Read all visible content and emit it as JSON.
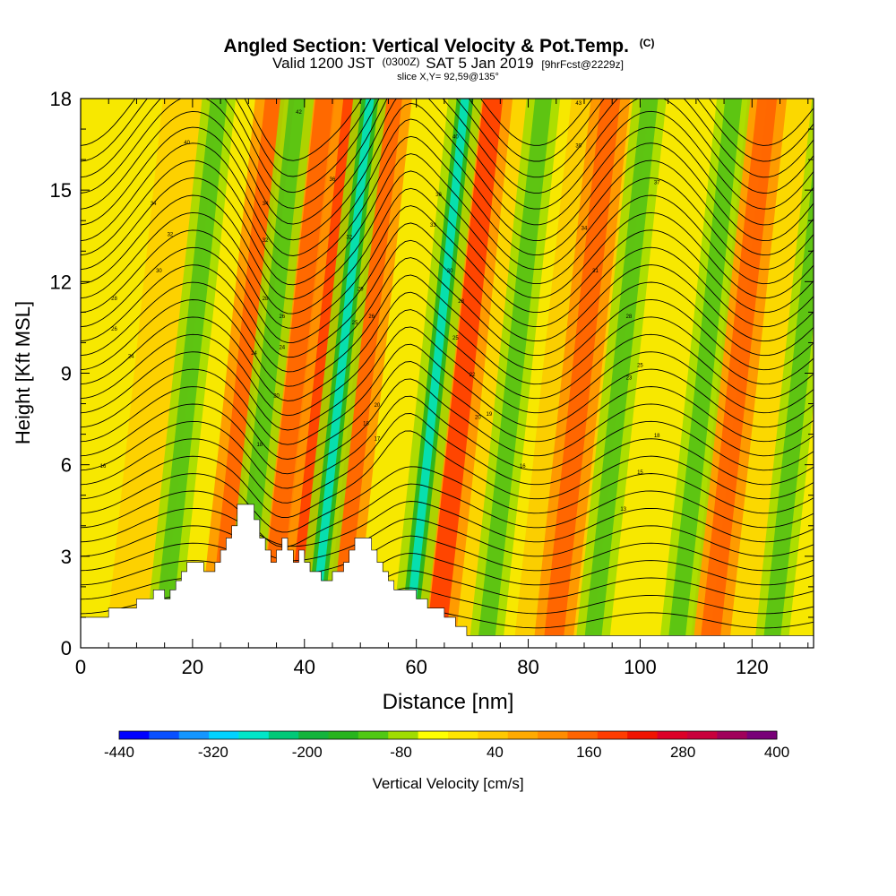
{
  "title": {
    "main": "Angled Section: Vertical Velocity & Pot.Temp.",
    "main_unit": "(C)",
    "valid_prefix": "Valid 1200 JST",
    "valid_utc": "(0300Z)",
    "valid_date": "SAT 5 Jan 2019",
    "forecast": "[9hrFcst@2229z]",
    "slice": "slice X,Y= 92,59@135°"
  },
  "chart_data": {
    "type": "heatmap",
    "xlabel": "Distance [nm]",
    "ylabel": "Height [Kft MSL]",
    "xlim": [
      0,
      131
    ],
    "ylim": [
      0,
      18
    ],
    "x_ticks": [
      0,
      20,
      40,
      60,
      80,
      100,
      120
    ],
    "y_ticks": [
      0,
      3,
      6,
      9,
      12,
      15,
      18
    ],
    "colorbar": {
      "label": "Vertical Velocity [cm/s]",
      "min": -440,
      "max": 400,
      "step": 40,
      "tick_labels": [
        -440,
        -320,
        -200,
        -80,
        40,
        160,
        280,
        400
      ],
      "colors": [
        "#0000ff",
        "#0a50ff",
        "#1496ff",
        "#00d2ff",
        "#00e6c8",
        "#00c878",
        "#14b43c",
        "#28b41e",
        "#50c814",
        "#a0dc00",
        "#ffff00",
        "#ffe600",
        "#ffc800",
        "#ffaa00",
        "#ff8c00",
        "#ff6400",
        "#ff3c00",
        "#f01400",
        "#dc0028",
        "#c8003c",
        "#a0005a",
        "#780078"
      ]
    },
    "terrain_height_kft": [
      [
        0,
        1.0
      ],
      [
        5,
        1.0
      ],
      [
        5,
        1.3
      ],
      [
        10,
        1.3
      ],
      [
        10,
        1.6
      ],
      [
        13,
        1.6
      ],
      [
        13,
        1.9
      ],
      [
        15,
        1.9
      ],
      [
        15,
        1.6
      ],
      [
        16,
        1.6
      ],
      [
        16,
        1.9
      ],
      [
        17,
        1.9
      ],
      [
        17,
        2.2
      ],
      [
        18,
        2.2
      ],
      [
        18,
        2.5
      ],
      [
        19,
        2.5
      ],
      [
        19,
        2.8
      ],
      [
        22,
        2.8
      ],
      [
        22,
        2.5
      ],
      [
        24,
        2.5
      ],
      [
        24,
        2.8
      ],
      [
        25,
        2.8
      ],
      [
        25,
        3.2
      ],
      [
        26,
        3.2
      ],
      [
        26,
        3.6
      ],
      [
        27,
        3.6
      ],
      [
        27,
        4.0
      ],
      [
        28,
        4.0
      ],
      [
        28,
        4.7
      ],
      [
        31,
        4.7
      ],
      [
        31,
        4.2
      ],
      [
        32,
        4.2
      ],
      [
        32,
        3.6
      ],
      [
        33,
        3.6
      ],
      [
        33,
        3.2
      ],
      [
        34,
        3.2
      ],
      [
        34,
        2.8
      ],
      [
        35,
        2.8
      ],
      [
        35,
        3.2
      ],
      [
        36,
        3.2
      ],
      [
        36,
        3.6
      ],
      [
        37,
        3.6
      ],
      [
        37,
        3.2
      ],
      [
        38,
        3.2
      ],
      [
        38,
        2.8
      ],
      [
        39,
        2.8
      ],
      [
        39,
        3.2
      ],
      [
        40,
        3.2
      ],
      [
        40,
        2.8
      ],
      [
        41,
        2.8
      ],
      [
        41,
        2.5
      ],
      [
        43,
        2.5
      ],
      [
        43,
        2.2
      ],
      [
        45,
        2.2
      ],
      [
        45,
        2.5
      ],
      [
        47,
        2.5
      ],
      [
        47,
        2.8
      ],
      [
        48,
        2.8
      ],
      [
        48,
        3.2
      ],
      [
        49,
        3.2
      ],
      [
        49,
        3.6
      ],
      [
        52,
        3.6
      ],
      [
        52,
        3.2
      ],
      [
        53,
        3.2
      ],
      [
        53,
        2.8
      ],
      [
        54,
        2.8
      ],
      [
        54,
        2.5
      ],
      [
        55,
        2.5
      ],
      [
        55,
        2.2
      ],
      [
        56,
        2.2
      ],
      [
        56,
        1.9
      ],
      [
        60,
        1.9
      ],
      [
        60,
        1.6
      ],
      [
        62,
        1.6
      ],
      [
        62,
        1.3
      ],
      [
        65,
        1.3
      ],
      [
        65,
        1.0
      ],
      [
        67,
        1.0
      ],
      [
        67,
        0.7
      ],
      [
        69,
        0.7
      ],
      [
        69,
        0.4
      ],
      [
        131,
        0.4
      ]
    ],
    "updraft_cores_x_nm": [
      18,
      27,
      32,
      39,
      57,
      78,
      106
    ],
    "downdraft_cores_x_nm": [
      8,
      22,
      35,
      52,
      66,
      85,
      100,
      117
    ],
    "contour_labels": [
      {
        "x": 19,
        "y": 16.5,
        "text": "40"
      },
      {
        "x": 13,
        "y": 14.5,
        "text": "34"
      },
      {
        "x": 16,
        "y": 13.5,
        "text": "32"
      },
      {
        "x": 14,
        "y": 12.3,
        "text": "30"
      },
      {
        "x": 6,
        "y": 11.4,
        "text": "28"
      },
      {
        "x": 6,
        "y": 10.4,
        "text": "26"
      },
      {
        "x": 9,
        "y": 9.5,
        "text": "24"
      },
      {
        "x": 4,
        "y": 5.9,
        "text": "16"
      },
      {
        "x": 33,
        "y": 14.5,
        "text": "34"
      },
      {
        "x": 33,
        "y": 13.3,
        "text": "32"
      },
      {
        "x": 33,
        "y": 11.4,
        "text": "28"
      },
      {
        "x": 31,
        "y": 9.6,
        "text": "24"
      },
      {
        "x": 32,
        "y": 6.6,
        "text": "18"
      },
      {
        "x": 36,
        "y": 10.8,
        "text": "26"
      },
      {
        "x": 36,
        "y": 9.8,
        "text": "24"
      },
      {
        "x": 35,
        "y": 8.2,
        "text": "20"
      },
      {
        "x": 39,
        "y": 17.5,
        "text": "42"
      },
      {
        "x": 45,
        "y": 15.3,
        "text": "36"
      },
      {
        "x": 48,
        "y": 13.4,
        "text": "32"
      },
      {
        "x": 50,
        "y": 11.7,
        "text": "29"
      },
      {
        "x": 52,
        "y": 10.8,
        "text": "26"
      },
      {
        "x": 49,
        "y": 10.6,
        "text": "25"
      },
      {
        "x": 53,
        "y": 7.9,
        "text": "20"
      },
      {
        "x": 51,
        "y": 7.3,
        "text": "18"
      },
      {
        "x": 53,
        "y": 6.8,
        "text": "17"
      },
      {
        "x": 67,
        "y": 16.7,
        "text": "40"
      },
      {
        "x": 64,
        "y": 14.8,
        "text": "36"
      },
      {
        "x": 63,
        "y": 13.8,
        "text": "33"
      },
      {
        "x": 66,
        "y": 12.3,
        "text": "30"
      },
      {
        "x": 68,
        "y": 11.3,
        "text": "28"
      },
      {
        "x": 67,
        "y": 10.1,
        "text": "25"
      },
      {
        "x": 70,
        "y": 8.9,
        "text": "22"
      },
      {
        "x": 71,
        "y": 7.5,
        "text": "20"
      },
      {
        "x": 73,
        "y": 7.6,
        "text": "19"
      },
      {
        "x": 79,
        "y": 5.9,
        "text": "16"
      },
      {
        "x": 89,
        "y": 16.4,
        "text": "39"
      },
      {
        "x": 90,
        "y": 13.7,
        "text": "34"
      },
      {
        "x": 92,
        "y": 12.3,
        "text": "31"
      },
      {
        "x": 98,
        "y": 10.8,
        "text": "28"
      },
      {
        "x": 100,
        "y": 9.2,
        "text": "25"
      },
      {
        "x": 98,
        "y": 8.8,
        "text": "23"
      },
      {
        "x": 103,
        "y": 6.9,
        "text": "18"
      },
      {
        "x": 100,
        "y": 5.7,
        "text": "15"
      },
      {
        "x": 97,
        "y": 4.5,
        "text": "13"
      },
      {
        "x": 89,
        "y": 17.8,
        "text": "43"
      },
      {
        "x": 103,
        "y": 15.2,
        "text": "37"
      }
    ]
  }
}
